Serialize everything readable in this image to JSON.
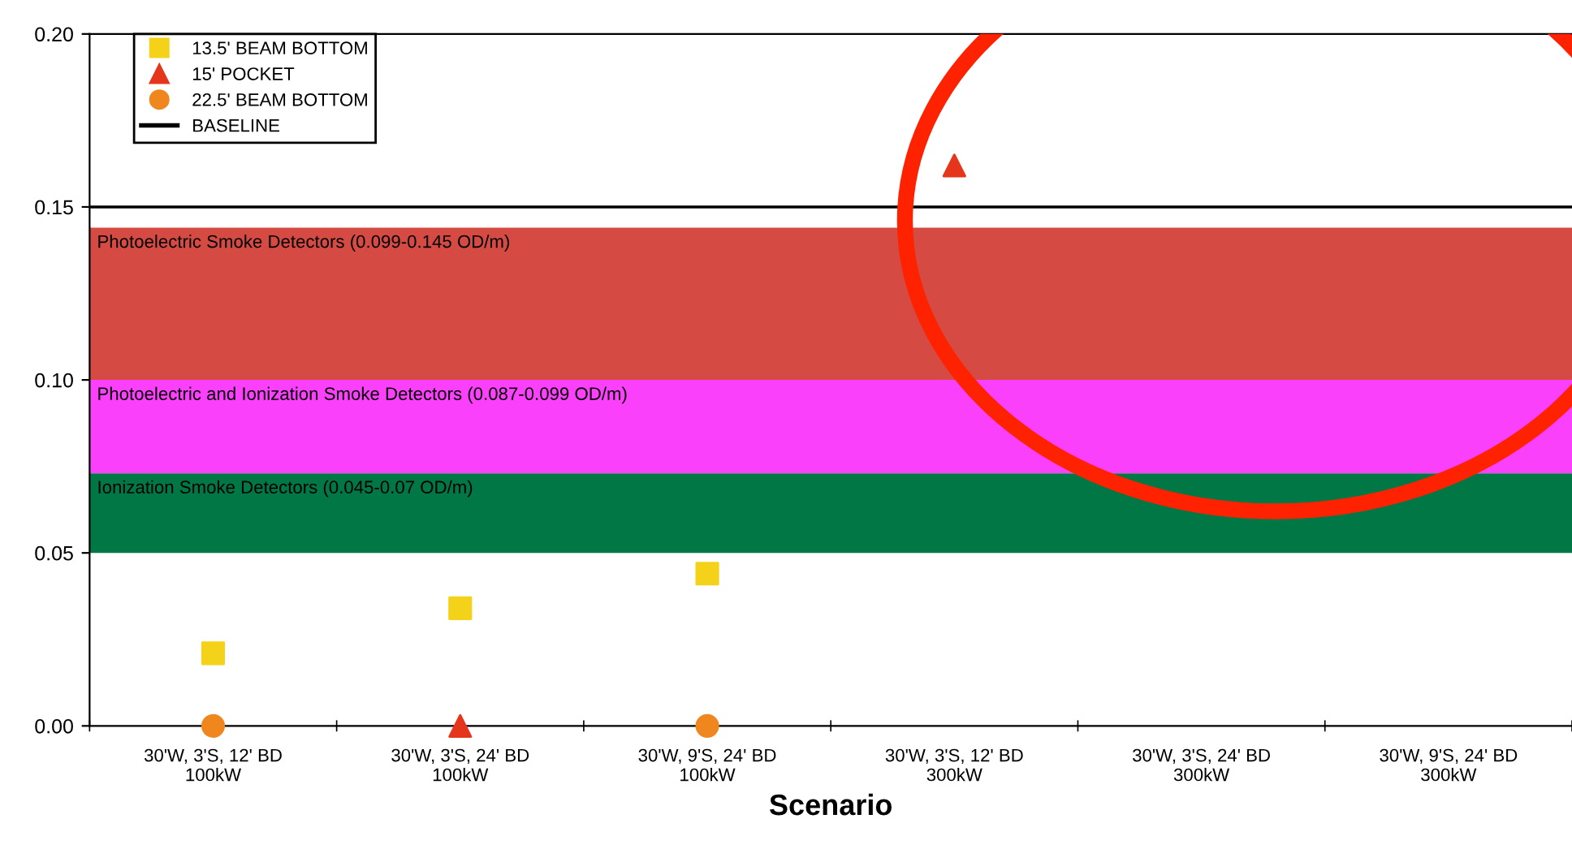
{
  "chart_data": {
    "type": "scatter",
    "xlabel": "Scenario",
    "categories": [
      "30'W, 3'S, 12' BD\n100kW",
      "30'W, 3'S, 24' BD\n100kW",
      "30'W, 9'S, 24' BD\n100kW",
      "30'W, 3'S, 12' BD\n300kW",
      "30'W, 3'S, 24' BD\n300kW",
      "30'W, 9'S, 24' BD\n300kW"
    ],
    "series": [
      {
        "name": "13.5' BEAM BOTTOM",
        "color": "#f5d21a",
        "marker": "square",
        "values": [
          0.021,
          0.034,
          0.044,
          null,
          null,
          null
        ]
      },
      {
        "name": "15' POCKET",
        "color": "#e5361c",
        "marker": "triangle",
        "values": [
          null,
          0.0,
          null,
          0.162,
          null,
          null
        ]
      },
      {
        "name": "22.5' BEAM BOTTOM",
        "color": "#f0861e",
        "marker": "circle",
        "values": [
          0.0,
          null,
          0.0,
          null,
          null,
          null
        ]
      }
    ],
    "ref_lines": [
      {
        "axis": "y",
        "value": 0.15,
        "label": "BASELINE",
        "color": "#000000",
        "line_style": "solid"
      }
    ],
    "bands": [
      {
        "axis": "y",
        "from": 0.1,
        "to": 0.144,
        "label": "Photoelectric Smoke Detectors (0.099-0.145 OD/m)",
        "color": "#d54b44"
      },
      {
        "axis": "y",
        "from": 0.073,
        "to": 0.1,
        "label": "Photoelectric and Ionization Smoke Detectors (0.087-0.099 OD/m)",
        "color": "#fb40fb"
      },
      {
        "axis": "y",
        "from": 0.05,
        "to": 0.073,
        "label": "Ionization Smoke Detectors (0.045-0.07 OD/m)",
        "color": "#007744"
      }
    ],
    "ylim": [
      0,
      0.2
    ],
    "yticks": [
      {
        "value": 0,
        "label": "0.00"
      },
      {
        "value": 0.05,
        "label": "0.05"
      },
      {
        "value": 0.1,
        "label": "0.10"
      },
      {
        "value": 0.15,
        "label": "0.15"
      },
      {
        "value": 0.2,
        "label": "0.20"
      }
    ],
    "grid": false,
    "legend": "top left"
  }
}
